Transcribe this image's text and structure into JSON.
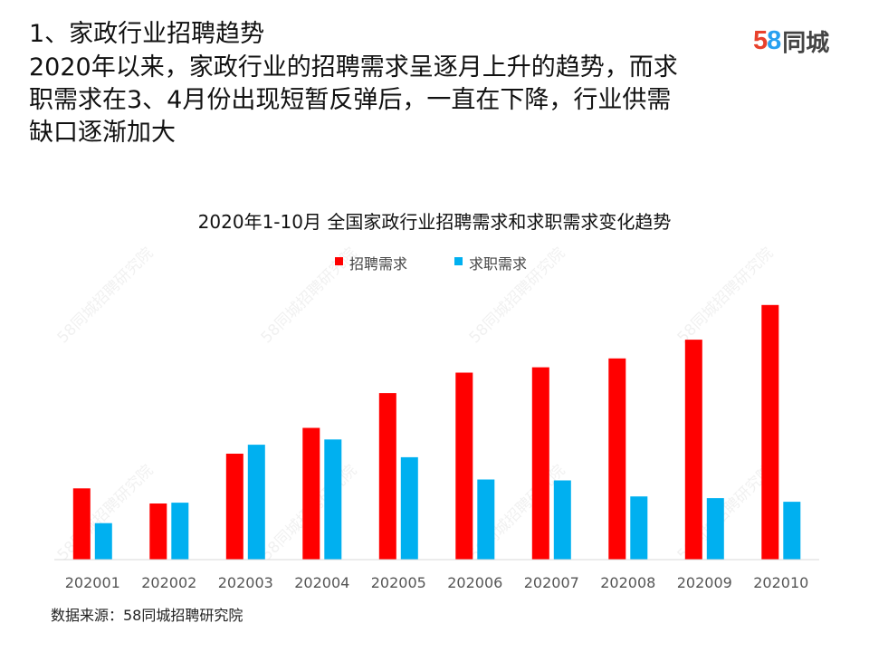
{
  "page": {
    "heading": "1、家政行业招聘趋势",
    "intro_lines": [
      "2020年以来，家政行业的招聘需求呈逐月上升的趋势，而求",
      "职需求在3、4月份出现短暂反弹后，一直在下降，行业供需",
      "缺口逐渐加大"
    ],
    "logo": {
      "digit_5": "5",
      "digit_8": "8",
      "text": "同城"
    },
    "source": "数据来源：58同城招聘研究院",
    "watermark": "58同城招聘研究院"
  },
  "colors": {
    "recruitment": "#ff0000",
    "job_seeking": "#00b0f0",
    "logo_five": "#e8412c",
    "logo_eight": "#27a0f0"
  },
  "chart_data": {
    "type": "bar",
    "title": "2020年1-10月 全国家政行业招聘需求和求职需求变化趋势",
    "categories": [
      "202001",
      "202002",
      "202003",
      "202004",
      "202005",
      "202006",
      "202007",
      "202008",
      "202009",
      "202010"
    ],
    "series": [
      {
        "name": "招聘需求",
        "values": [
          80,
          63,
          119,
          148,
          187,
          210,
          216,
          226,
          247,
          286
        ]
      },
      {
        "name": "求职需求",
        "values": [
          41,
          64,
          129,
          135,
          115,
          90,
          89,
          71,
          69,
          65
        ]
      }
    ],
    "ylim": [
      0,
      300
    ],
    "y_axis_visible": false,
    "grid": false,
    "legend": "top-center",
    "xlabel": "",
    "ylabel": ""
  }
}
